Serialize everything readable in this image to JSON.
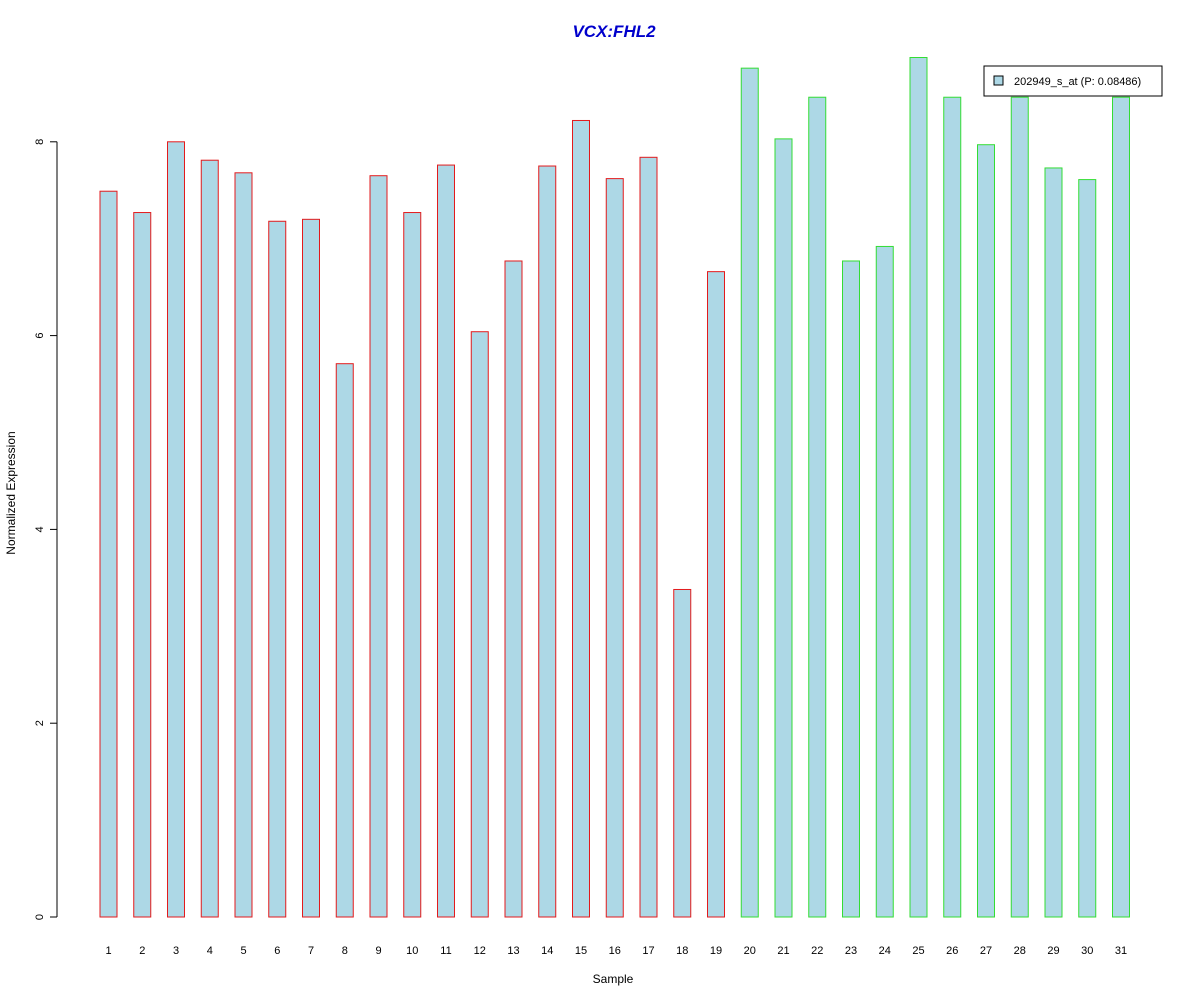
{
  "chart_data": {
    "type": "bar",
    "title": "VCX:FHL2",
    "xlabel": "Sample",
    "ylabel": "Normalized Expression",
    "ylim": [
      0,
      9
    ],
    "yticks": [
      0,
      2,
      4,
      6,
      8
    ],
    "categories": [
      "1",
      "2",
      "3",
      "4",
      "5",
      "6",
      "7",
      "8",
      "9",
      "10",
      "11",
      "12",
      "13",
      "14",
      "15",
      "16",
      "17",
      "18",
      "19",
      "20",
      "21",
      "22",
      "23",
      "24",
      "25",
      "26",
      "27",
      "28",
      "29",
      "30",
      "31"
    ],
    "series": [
      {
        "name": "202949_s_at (P: 0.08486)",
        "values": [
          7.49,
          7.27,
          8.0,
          7.81,
          7.68,
          7.18,
          7.2,
          5.71,
          7.65,
          7.27,
          7.76,
          6.04,
          6.77,
          7.75,
          8.22,
          7.62,
          7.84,
          3.38,
          6.66,
          8.76,
          8.03,
          8.46,
          6.77,
          6.92,
          8.87,
          8.46,
          7.97,
          8.46,
          7.73,
          7.61,
          8.46
        ]
      }
    ],
    "group_border_colors": {
      "group_1": {
        "samples": "1-19",
        "color": "#e31a1c"
      },
      "group_2": {
        "samples": "20-31",
        "color": "#33dd33"
      }
    },
    "bar_fill_color": "#add8e6",
    "title_color": "#0000cc",
    "legend_position": "top-right"
  }
}
